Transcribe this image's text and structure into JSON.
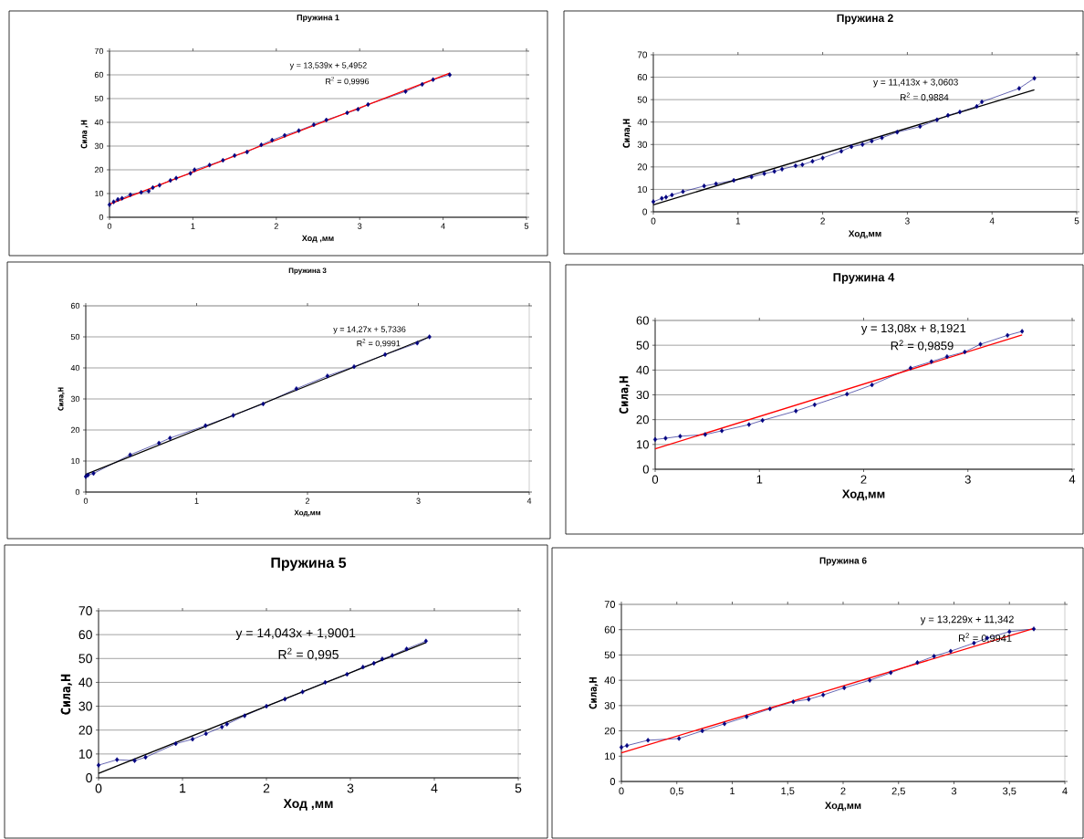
{
  "chart_data": [
    {
      "type": "line",
      "title": "Пружина 1",
      "xlabel": "Ход ,мм",
      "ylabel": "Сила ,Н",
      "annotations": [
        "y = 13,539x + 5,4952",
        "R$^{2}$ = 0,9996"
      ],
      "xlim": [
        0,
        5
      ],
      "ylim": [
        0,
        70
      ],
      "xticks": [
        0,
        1,
        2,
        3,
        4,
        5
      ],
      "yticks": [
        0,
        10,
        20,
        30,
        40,
        50,
        60,
        70
      ],
      "grid": "y",
      "marker": "diamond",
      "line_style": "solid",
      "series": [
        {
          "color": "#000080",
          "x": [
            0,
            0.05,
            0.1,
            0.15,
            0.25,
            0.38,
            0.47,
            0.52,
            0.6,
            0.73,
            0.8,
            0.97,
            1.02,
            1.2,
            1.36,
            1.5,
            1.65,
            1.82,
            1.95,
            2.1,
            2.27,
            2.45,
            2.6,
            2.85,
            2.98,
            3.1,
            3.55,
            3.75,
            3.88,
            4.08
          ],
          "values": [
            5.3,
            6.5,
            7.5,
            8,
            9.5,
            10.5,
            11,
            12.5,
            13.5,
            15.5,
            16.5,
            18.5,
            20,
            22,
            24,
            26,
            27.5,
            30.5,
            32.5,
            34.5,
            36.5,
            39,
            41,
            44,
            45.5,
            47.5,
            53,
            56,
            58,
            60
          ]
        },
        {
          "type": "line",
          "color": "#ff0000",
          "marker": "none",
          "x": [
            0,
            4.08
          ],
          "values": [
            5.5,
            60.7
          ]
        }
      ]
    },
    {
      "type": "line",
      "title": "Пружина 2",
      "xlabel": "Ход,мм",
      "ylabel": "Сила,Н",
      "annotations": [
        "y = 11,413x + 3,0603",
        "R$^{2}$ = 0,9884"
      ],
      "xlim": [
        0,
        5
      ],
      "ylim": [
        0,
        70
      ],
      "xticks": [
        0,
        1,
        2,
        3,
        4,
        5
      ],
      "yticks": [
        0,
        10,
        20,
        30,
        40,
        50,
        60,
        70
      ],
      "grid": "y",
      "marker": "diamond",
      "line_style": "solid",
      "series": [
        {
          "color": "#000080",
          "x": [
            0,
            0.1,
            0.15,
            0.22,
            0.35,
            0.6,
            0.74,
            0.95,
            1.16,
            1.31,
            1.43,
            1.52,
            1.68,
            1.76,
            1.88,
            2.0,
            2.22,
            2.34,
            2.47,
            2.58,
            2.7,
            2.88,
            3.15,
            3.35,
            3.48,
            3.62,
            3.82,
            3.88,
            4.32,
            4.5
          ],
          "values": [
            4.5,
            6,
            6.5,
            7.5,
            9,
            11.5,
            12.5,
            14,
            15.5,
            17,
            18,
            19,
            20.5,
            21,
            22.5,
            24,
            27,
            29,
            30,
            31.5,
            33,
            35.5,
            38,
            41,
            43,
            44.5,
            47,
            49,
            55,
            59.5
          ]
        },
        {
          "type": "line",
          "color": "#000000",
          "marker": "none",
          "x": [
            0,
            4.5
          ],
          "values": [
            3.1,
            54.4
          ]
        }
      ]
    },
    {
      "type": "line",
      "title": "Пружина 3",
      "xlabel": "Ход,мм",
      "ylabel": "Сила,Н",
      "annotations": [
        "y = 14,27x + 5,7336",
        "R$^{2}$ = 0,9991"
      ],
      "xlim": [
        0,
        4
      ],
      "ylim": [
        0,
        60
      ],
      "xticks": [
        0,
        1,
        2,
        3,
        4
      ],
      "yticks": [
        0,
        10,
        20,
        30,
        40,
        50,
        60
      ],
      "grid": "y",
      "marker": "diamond",
      "line_style": "solid",
      "series": [
        {
          "color": "#000080",
          "x": [
            0,
            0.02,
            0.07,
            0.4,
            0.66,
            0.76,
            1.08,
            1.33,
            1.6,
            1.9,
            2.18,
            2.42,
            2.7,
            2.99,
            3.1
          ],
          "values": [
            5,
            5.5,
            6,
            12,
            15.8,
            17.4,
            21.4,
            24.7,
            28.4,
            33.3,
            37.4,
            40.4,
            44.3,
            48,
            50
          ]
        },
        {
          "type": "line",
          "color": "#000000",
          "marker": "none",
          "x": [
            0,
            3.1
          ],
          "values": [
            5.7,
            50
          ]
        }
      ]
    },
    {
      "type": "line",
      "title": "Пружина 4",
      "xlabel": "Ход,мм",
      "ylabel": "Сила,Н",
      "annotations": [
        "y = 13,08x + 8,1921",
        "R$^{2}$ = 0,9859"
      ],
      "xlim": [
        0,
        4
      ],
      "ylim": [
        0,
        60
      ],
      "xticks": [
        0,
        1,
        2,
        3,
        4
      ],
      "yticks": [
        0,
        10,
        20,
        30,
        40,
        50,
        60
      ],
      "grid": "y",
      "marker": "diamond",
      "line_style": "solid",
      "series": [
        {
          "color": "#000080",
          "x": [
            0,
            0.1,
            0.24,
            0.48,
            0.64,
            0.9,
            1.03,
            1.35,
            1.53,
            1.84,
            2.08,
            2.45,
            2.65,
            2.8,
            2.97,
            3.12,
            3.38,
            3.52
          ],
          "values": [
            12,
            12.5,
            13.3,
            14,
            15.5,
            18,
            19.7,
            23.5,
            26,
            30.3,
            34,
            40.8,
            43.4,
            45.4,
            47.3,
            50.4,
            54,
            55.6
          ]
        },
        {
          "type": "line",
          "color": "#ff0000",
          "marker": "none",
          "x": [
            0,
            3.52
          ],
          "values": [
            8.2,
            54.2
          ]
        }
      ]
    },
    {
      "type": "line",
      "title": "Пружина 5",
      "xlabel": "Ход ,мм",
      "ylabel": "Сила,Н",
      "annotations": [
        "y = 14,043x + 1,9001",
        "R$^{2}$ = 0,995"
      ],
      "xlim": [
        0,
        5
      ],
      "ylim": [
        0,
        70
      ],
      "xticks": [
        0,
        1,
        2,
        3,
        4,
        5
      ],
      "yticks": [
        0,
        10,
        20,
        30,
        40,
        50,
        60,
        70
      ],
      "grid": "y",
      "marker": "diamond",
      "line_style": "solid",
      "series": [
        {
          "color": "#000080",
          "x": [
            0,
            0.22,
            0.43,
            0.56,
            0.92,
            1.12,
            1.28,
            1.47,
            1.53,
            1.74,
            2.0,
            2.22,
            2.43,
            2.7,
            2.96,
            3.15,
            3.28,
            3.38,
            3.5,
            3.67,
            3.9
          ],
          "values": [
            5.3,
            7.6,
            7.2,
            8.6,
            14.3,
            16.2,
            18.5,
            21.3,
            22.5,
            26,
            30,
            33,
            36,
            40,
            43.4,
            46.4,
            48,
            49.8,
            51.3,
            54,
            57.3
          ]
        },
        {
          "type": "line",
          "color": "#000000",
          "marker": "none",
          "x": [
            0,
            3.9
          ],
          "values": [
            1.9,
            56.7
          ]
        }
      ]
    },
    {
      "type": "line",
      "title": "Пружина 6",
      "xlabel": "Ход,мм",
      "ylabel": "Сила,Н",
      "annotations": [
        "y = 13,229x + 11,342",
        "R$^{2}$ = 0,9941"
      ],
      "xlim": [
        0,
        4
      ],
      "ylim": [
        0,
        70
      ],
      "xticks": [
        0,
        {
          "value": 0.5,
          "label": "0,5"
        },
        1,
        {
          "value": 1.5,
          "label": "1,5"
        },
        2,
        {
          "value": 2.5,
          "label": "2,5"
        },
        3,
        {
          "value": 3.5,
          "label": "3,5"
        },
        4
      ],
      "yticks": [
        0,
        10,
        20,
        30,
        40,
        50,
        60,
        70
      ],
      "grid": "y",
      "marker": "diamond",
      "line_style": "solid",
      "series": [
        {
          "color": "#000080",
          "x": [
            0,
            0.05,
            0.24,
            0.52,
            0.73,
            0.93,
            1.13,
            1.34,
            1.55,
            1.69,
            1.82,
            2.01,
            2.24,
            2.43,
            2.67,
            2.82,
            2.97,
            3.18,
            3.3,
            3.5,
            3.72
          ],
          "values": [
            13.5,
            14.2,
            16.3,
            17,
            20,
            22.8,
            25.6,
            28.7,
            31.5,
            32.5,
            34.2,
            37,
            40,
            43,
            47,
            49.5,
            51.5,
            54.7,
            56.7,
            59.2,
            60.3
          ]
        },
        {
          "type": "line",
          "color": "#ff0000",
          "marker": "none",
          "x": [
            0,
            3.72
          ],
          "values": [
            11.3,
            60.5
          ]
        }
      ]
    }
  ]
}
